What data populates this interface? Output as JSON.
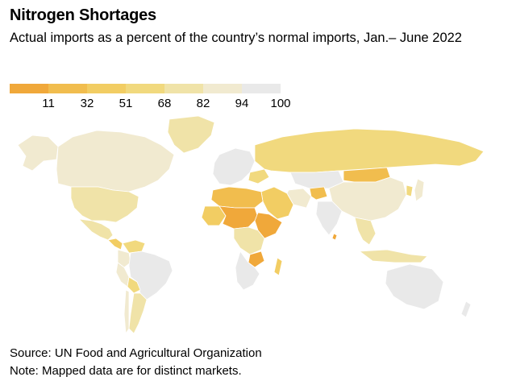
{
  "header": {
    "title": "Nitrogen Shortages",
    "subtitle": "Actual imports as a percent of the country’s normal imports, Jan.– June 2022"
  },
  "legend": {
    "colors": [
      "#f0a83a",
      "#f1bd4e",
      "#f2cd63",
      "#f1d97e",
      "#f0e3a8",
      "#f1ead0",
      "#e9e9e9"
    ],
    "ticks": [
      "11",
      "32",
      "51",
      "68",
      "82",
      "94",
      "100"
    ]
  },
  "map_regions": [
    {
      "name": "canada",
      "color": "#f1ead0"
    },
    {
      "name": "alaska",
      "color": "#f1ead0"
    },
    {
      "name": "greenland",
      "color": "#f0e3a8"
    },
    {
      "name": "usa",
      "color": "#f0e3a8"
    },
    {
      "name": "mexico",
      "color": "#f0e3a8"
    },
    {
      "name": "central-america",
      "color": "#f2cd63"
    },
    {
      "name": "brazil",
      "color": "#e9e9e9"
    },
    {
      "name": "argentina",
      "color": "#f0e3a8"
    },
    {
      "name": "chile",
      "color": "#f1ead0"
    },
    {
      "name": "peru",
      "color": "#f1ead0"
    },
    {
      "name": "colombia",
      "color": "#f1ead0"
    },
    {
      "name": "venezuela",
      "color": "#f1d97e"
    },
    {
      "name": "bolivia",
      "color": "#f1d97e"
    },
    {
      "name": "europe",
      "color": "#e9e9e9"
    },
    {
      "name": "ukraine",
      "color": "#f1d97e"
    },
    {
      "name": "russia",
      "color": "#f1d97e"
    },
    {
      "name": "kazakhstan",
      "color": "#e9e9e9"
    },
    {
      "name": "mongolia",
      "color": "#f1bd4e"
    },
    {
      "name": "china",
      "color": "#f1ead0"
    },
    {
      "name": "india",
      "color": "#e9e9e9"
    },
    {
      "name": "middle-east",
      "color": "#f2cd63"
    },
    {
      "name": "iran",
      "color": "#f1ead0"
    },
    {
      "name": "afghanistan",
      "color": "#f1bd4e"
    },
    {
      "name": "southeast-asia",
      "color": "#f0e3a8"
    },
    {
      "name": "indonesia",
      "color": "#f0e3a8"
    },
    {
      "name": "australia",
      "color": "#e9e9e9"
    },
    {
      "name": "new-zealand",
      "color": "#e9e9e9"
    },
    {
      "name": "north-africa",
      "color": "#f1bd4e"
    },
    {
      "name": "sahel",
      "color": "#f0a83a"
    },
    {
      "name": "west-africa",
      "color": "#f2cd63"
    },
    {
      "name": "east-africa",
      "color": "#f0a83a"
    },
    {
      "name": "central-africa",
      "color": "#f0e3a8"
    },
    {
      "name": "southern-africa",
      "color": "#e9e9e9"
    },
    {
      "name": "zimbabwe",
      "color": "#f0a83a"
    },
    {
      "name": "madagascar",
      "color": "#f2cd63"
    },
    {
      "name": "japan",
      "color": "#f1ead0"
    },
    {
      "name": "korea",
      "color": "#f1d97e"
    },
    {
      "name": "sri-lanka",
      "color": "#f0a83a"
    }
  ],
  "footer": {
    "source": "Source: UN Food and Agricultural Organization",
    "note": "Note: Mapped data are for distinct markets."
  }
}
